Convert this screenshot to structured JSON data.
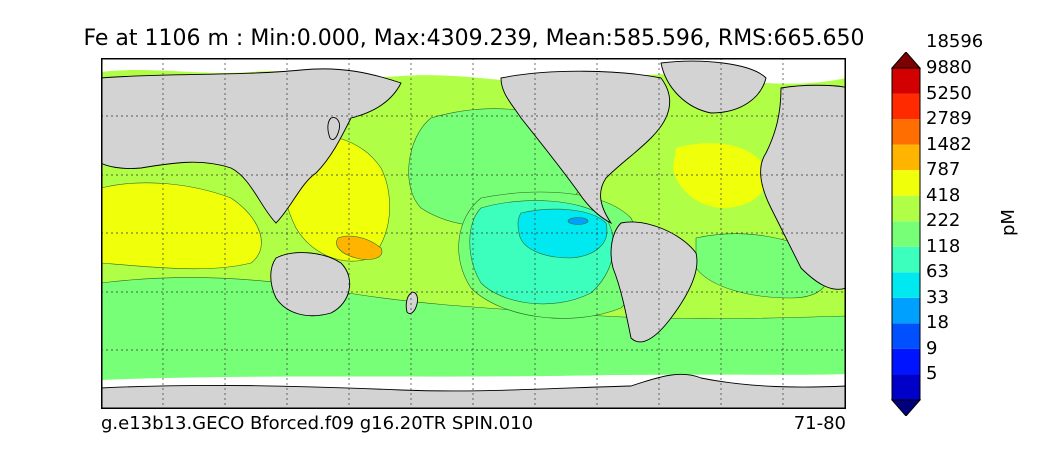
{
  "title": "Fe at 1106 m : Min:0.000, Max:4309.239, Mean:585.596, RMS:665.650",
  "footer": {
    "run_name": "g.e13b13.GECO Bforced.f09 g16.20TR SPIN.010",
    "years": "71-80"
  },
  "colorbar": {
    "unit": "pM",
    "levels": [
      "5",
      "9",
      "18",
      "33",
      "63",
      "118",
      "222",
      "418",
      "787",
      "1482",
      "2789",
      "5250",
      "9880",
      "18596"
    ],
    "colors": [
      "#00007f",
      "#0000c8",
      "#0014ff",
      "#0050ff",
      "#00a0ff",
      "#00e8f0",
      "#3cffbe",
      "#78ff78",
      "#b0ff46",
      "#f0ff0a",
      "#ffb400",
      "#ff6e00",
      "#ff2a00",
      "#d20000",
      "#7f0000"
    ]
  },
  "map": {
    "projection": "cylindrical, centered on Pacific",
    "land_color": "#d3d3d3",
    "missing_color": "#ffffff",
    "grid": "dotted"
  }
}
